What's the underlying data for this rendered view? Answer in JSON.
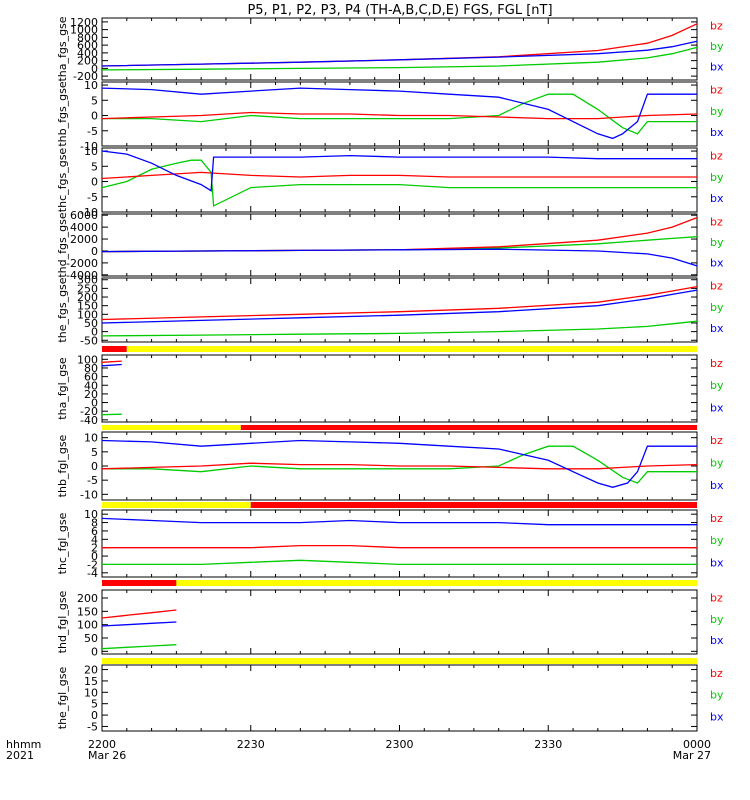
{
  "title": "P5, P1, P2, P3, P4 (TH-A,B,C,D,E) FGS, FGL [nT]",
  "colors": {
    "bx": "#0000ff",
    "by": "#00cc00",
    "bz": "#ff0000",
    "bar_yellow": "#ffff00",
    "bar_red": "#ff0000",
    "axis": "#000000"
  },
  "legend": [
    "bz",
    "by",
    "bx"
  ],
  "time_axis": {
    "row_label_1": "hhmm",
    "row_label_2": "2021",
    "ticks": [
      {
        "t": 0,
        "label": "2200",
        "sublabel": "Mar 26"
      },
      {
        "t": 30,
        "label": "2230",
        "sublabel": ""
      },
      {
        "t": 60,
        "label": "2300",
        "sublabel": ""
      },
      {
        "t": 90,
        "label": "2330",
        "sublabel": ""
      },
      {
        "t": 120,
        "label": "0000",
        "sublabel": "Mar 27"
      }
    ],
    "range_minutes": [
      0,
      120
    ]
  },
  "chart_data": [
    {
      "type": "line",
      "ylabel": "tha_fgs_gse",
      "ylim": [
        -300,
        1300
      ],
      "yticks": [
        -200,
        0,
        200,
        400,
        600,
        800,
        1000,
        1200
      ],
      "series": [
        {
          "name": "bx",
          "x": [
            0,
            20,
            40,
            60,
            80,
            100,
            110,
            115,
            120
          ],
          "values": [
            60,
            110,
            160,
            220,
            290,
            380,
            470,
            560,
            700
          ]
        },
        {
          "name": "by",
          "x": [
            0,
            20,
            40,
            60,
            80,
            100,
            110,
            115,
            120
          ],
          "values": [
            -40,
            -20,
            0,
            20,
            60,
            160,
            270,
            380,
            540
          ]
        },
        {
          "name": "bz",
          "x": [
            0,
            20,
            40,
            60,
            80,
            100,
            110,
            115,
            120
          ],
          "values": [
            60,
            110,
            160,
            220,
            300,
            460,
            650,
            850,
            1150
          ]
        }
      ]
    },
    {
      "type": "line",
      "ylabel": "thb_fgs_gse",
      "ylim": [
        -10,
        11
      ],
      "yticks": [
        -10,
        -5,
        0,
        5,
        10
      ],
      "series": [
        {
          "name": "bx",
          "x": [
            0,
            10,
            20,
            30,
            40,
            50,
            60,
            70,
            80,
            90,
            95,
            100,
            103,
            105,
            108,
            110,
            120
          ],
          "values": [
            9,
            8.5,
            7,
            8,
            9,
            8.5,
            8,
            7,
            6,
            2,
            -2,
            -6,
            -7.5,
            -6,
            -2,
            7,
            7
          ]
        },
        {
          "name": "by",
          "x": [
            0,
            10,
            20,
            30,
            40,
            50,
            60,
            70,
            80,
            85,
            90,
            95,
            100,
            105,
            108,
            110,
            120
          ],
          "values": [
            -1,
            -1,
            -2,
            0,
            -1,
            -1,
            -1,
            -1,
            0,
            4,
            7,
            7,
            2,
            -4,
            -6,
            -2,
            -2
          ]
        },
        {
          "name": "bz",
          "x": [
            0,
            10,
            20,
            30,
            40,
            50,
            60,
            70,
            80,
            90,
            100,
            105,
            110,
            120
          ],
          "values": [
            -1,
            -0.5,
            0,
            1,
            0.5,
            0.5,
            0,
            0,
            -0.5,
            -1,
            -1,
            -0.5,
            0,
            0.5
          ]
        }
      ]
    },
    {
      "type": "line",
      "ylabel": "thc_fgs_gse",
      "ylim": [
        -10,
        11
      ],
      "yticks": [
        -10,
        -5,
        0,
        5,
        10
      ],
      "series": [
        {
          "name": "bx",
          "x": [
            0,
            5,
            10,
            15,
            20,
            22,
            22.5,
            30,
            40,
            50,
            60,
            70,
            80,
            90,
            100,
            110,
            120
          ],
          "values": [
            10,
            9,
            6,
            2,
            -1,
            -3,
            8,
            8,
            8,
            8.5,
            8,
            8,
            8,
            8,
            7.5,
            7.5,
            7.5
          ]
        },
        {
          "name": "by",
          "x": [
            0,
            5,
            10,
            15,
            18,
            20,
            22,
            22.5,
            30,
            40,
            50,
            60,
            70,
            80,
            90,
            100,
            110,
            120
          ],
          "values": [
            -2,
            0,
            4,
            6,
            7,
            7,
            3,
            -8,
            -2,
            -1,
            -1,
            -1,
            -2,
            -2,
            -2,
            -2,
            -2,
            -2
          ]
        },
        {
          "name": "bz",
          "x": [
            0,
            10,
            20,
            30,
            40,
            50,
            60,
            70,
            80,
            90,
            100,
            110,
            120
          ],
          "values": [
            1,
            2,
            3,
            2,
            1.5,
            2,
            2,
            1.5,
            1.5,
            1.5,
            1.5,
            1.5,
            1.5
          ]
        }
      ]
    },
    {
      "type": "line",
      "ylabel": "thd_fgs_gse",
      "ylim": [
        -4200,
        6200
      ],
      "yticks": [
        -4000,
        -2000,
        0,
        2000,
        4000,
        6000
      ],
      "series": [
        {
          "name": "bx",
          "x": [
            0,
            20,
            40,
            60,
            80,
            100,
            110,
            115,
            120
          ],
          "values": [
            -100,
            0,
            100,
            200,
            300,
            0,
            -500,
            -1200,
            -2500
          ]
        },
        {
          "name": "by",
          "x": [
            0,
            20,
            40,
            60,
            80,
            100,
            110,
            115,
            120
          ],
          "values": [
            -100,
            0,
            100,
            200,
            500,
            1200,
            1800,
            2100,
            2400
          ]
        },
        {
          "name": "bz",
          "x": [
            0,
            20,
            40,
            60,
            80,
            100,
            110,
            115,
            120
          ],
          "values": [
            -100,
            0,
            100,
            200,
            700,
            1800,
            3000,
            4000,
            5600
          ]
        }
      ]
    },
    {
      "type": "line",
      "ylabel": "the_fgs_gse",
      "ylim": [
        -60,
        310
      ],
      "yticks": [
        -50,
        0,
        50,
        100,
        150,
        200,
        250,
        300
      ],
      "series": [
        {
          "name": "bx",
          "x": [
            0,
            20,
            40,
            60,
            80,
            100,
            110,
            115,
            120
          ],
          "values": [
            50,
            65,
            80,
            95,
            115,
            150,
            190,
            215,
            240
          ]
        },
        {
          "name": "by",
          "x": [
            0,
            20,
            40,
            60,
            80,
            100,
            110,
            115,
            120
          ],
          "values": [
            -25,
            -20,
            -15,
            -10,
            0,
            15,
            30,
            45,
            60
          ]
        },
        {
          "name": "bz",
          "x": [
            0,
            20,
            40,
            60,
            80,
            100,
            110,
            115,
            120
          ],
          "values": [
            70,
            85,
            100,
            115,
            135,
            170,
            210,
            235,
            260
          ]
        }
      ]
    },
    {
      "type": "line",
      "ylabel": "tha_fgl_gse",
      "ylim": [
        -45,
        110
      ],
      "yticks": [
        -40,
        -20,
        0,
        20,
        40,
        60,
        80,
        100
      ],
      "series": [
        {
          "name": "bx",
          "x": [
            0,
            4
          ],
          "values": [
            85,
            88
          ]
        },
        {
          "name": "by",
          "x": [
            0,
            4
          ],
          "values": [
            -28,
            -27
          ]
        },
        {
          "name": "bz",
          "x": [
            0,
            4
          ],
          "values": [
            93,
            96
          ]
        }
      ]
    },
    {
      "type": "line",
      "ylabel": "thb_fgl_gse",
      "ylim": [
        -12,
        12
      ],
      "yticks": [
        -10,
        -5,
        0,
        5,
        10
      ],
      "series": [
        {
          "name": "bx",
          "x": [
            0,
            10,
            20,
            30,
            40,
            50,
            60,
            70,
            80,
            90,
            95,
            100,
            103,
            106,
            108,
            110,
            120
          ],
          "values": [
            9,
            8.5,
            7,
            8,
            9,
            8.5,
            8,
            7,
            6,
            2,
            -2,
            -6,
            -7.5,
            -6,
            -2,
            7,
            7
          ]
        },
        {
          "name": "by",
          "x": [
            0,
            10,
            20,
            30,
            40,
            50,
            60,
            70,
            80,
            85,
            90,
            95,
            100,
            105,
            108,
            110,
            120
          ],
          "values": [
            -1,
            -1,
            -2,
            0,
            -1,
            -1,
            -1,
            -1,
            0,
            4,
            7,
            7,
            2,
            -4,
            -6,
            -2,
            -2
          ]
        },
        {
          "name": "bz",
          "x": [
            0,
            10,
            20,
            30,
            40,
            50,
            60,
            70,
            80,
            90,
            100,
            105,
            110,
            120
          ],
          "values": [
            -1,
            -0.5,
            0,
            1,
            0.5,
            0.5,
            0,
            0,
            -0.5,
            -1,
            -1,
            -0.5,
            0,
            0.5
          ]
        }
      ]
    },
    {
      "type": "line",
      "ylabel": "thc_fgl_gse",
      "ylim": [
        -5,
        11
      ],
      "yticks": [
        -4,
        -2,
        0,
        2,
        4,
        6,
        8,
        10
      ],
      "series": [
        {
          "name": "bx",
          "x": [
            0,
            10,
            20,
            30,
            40,
            50,
            60,
            70,
            80,
            90,
            100,
            110,
            120
          ],
          "values": [
            9,
            8.5,
            8,
            8,
            8,
            8.5,
            8,
            8,
            8,
            7.5,
            7.5,
            7.5,
            7.5
          ]
        },
        {
          "name": "by",
          "x": [
            0,
            10,
            20,
            30,
            40,
            50,
            60,
            70,
            80,
            90,
            100,
            110,
            120
          ],
          "values": [
            -2,
            -2,
            -2,
            -1.5,
            -1,
            -1.5,
            -2,
            -2,
            -2,
            -2,
            -2,
            -2,
            -2
          ]
        },
        {
          "name": "bz",
          "x": [
            0,
            10,
            20,
            30,
            40,
            50,
            60,
            70,
            80,
            90,
            100,
            110,
            120
          ],
          "values": [
            2,
            2,
            2,
            2,
            2.5,
            2.5,
            2,
            2,
            2,
            2,
            2,
            2,
            2
          ]
        }
      ]
    },
    {
      "type": "line",
      "ylabel": "thd_fgl_gse",
      "ylim": [
        -10,
        230
      ],
      "yticks": [
        0,
        50,
        100,
        150,
        200
      ],
      "series": [
        {
          "name": "bx",
          "x": [
            0,
            5,
            10,
            15
          ],
          "values": [
            95,
            100,
            105,
            110
          ]
        },
        {
          "name": "by",
          "x": [
            0,
            5,
            10,
            15
          ],
          "values": [
            10,
            15,
            20,
            25
          ]
        },
        {
          "name": "bz",
          "x": [
            0,
            5,
            10,
            15
          ],
          "values": [
            125,
            135,
            145,
            155
          ]
        }
      ]
    },
    {
      "type": "line",
      "ylabel": "the_fgl_gse",
      "ylim": [
        -7,
        22
      ],
      "yticks": [
        -5,
        0,
        5,
        10,
        15,
        20
      ],
      "series": [
        {
          "name": "bx",
          "x": [],
          "values": []
        },
        {
          "name": "by",
          "x": [],
          "values": []
        },
        {
          "name": "bz",
          "x": [],
          "values": []
        }
      ]
    }
  ],
  "mode_bars": [
    {
      "segments": [
        {
          "from": 0,
          "to": 5,
          "color": "red"
        },
        {
          "from": 5,
          "to": 120,
          "color": "yellow"
        }
      ]
    },
    {
      "segments": [
        {
          "from": 0,
          "to": 28,
          "color": "yellow"
        },
        {
          "from": 28,
          "to": 120,
          "color": "red"
        }
      ]
    },
    {
      "segments": [
        {
          "from": 0,
          "to": 30,
          "color": "yellow"
        },
        {
          "from": 30,
          "to": 120,
          "color": "red"
        }
      ]
    },
    {
      "segments": [
        {
          "from": 0,
          "to": 15,
          "color": "red"
        },
        {
          "from": 15,
          "to": 120,
          "color": "yellow"
        }
      ]
    },
    {
      "segments": [
        {
          "from": 0,
          "to": 120,
          "color": "yellow"
        }
      ]
    }
  ]
}
